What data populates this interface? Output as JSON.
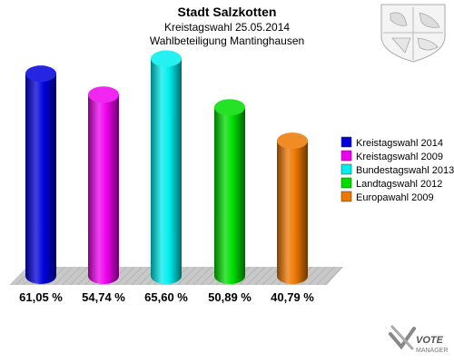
{
  "chart_data": {
    "type": "bar",
    "title": "Stadt Salzkotten",
    "subtitle_1": "Kreistagswahl 25.05.2014",
    "subtitle_2": "Wahlbeteiligung Mantinghausen",
    "categories": [
      "Kreistagswahl 2014",
      "Kreistagswahl 2009",
      "Bundestagswahl 2013",
      "Landtagswahl 2012",
      "Europawahl 2009"
    ],
    "values": [
      61.05,
      54.74,
      65.6,
      50.89,
      40.79
    ],
    "value_labels": [
      "61,05 %",
      "54,74 %",
      "65,60 %",
      "50,89 %",
      "40,79 %"
    ],
    "colors": [
      "#0000dd",
      "#ee00ee",
      "#00eeee",
      "#00dd00",
      "#ee7700"
    ],
    "ylim": [
      0,
      100
    ],
    "legend_position": "right",
    "grid": false
  },
  "branding": {
    "logo_text": "VOTE",
    "logo_sub": "MANAGER"
  }
}
